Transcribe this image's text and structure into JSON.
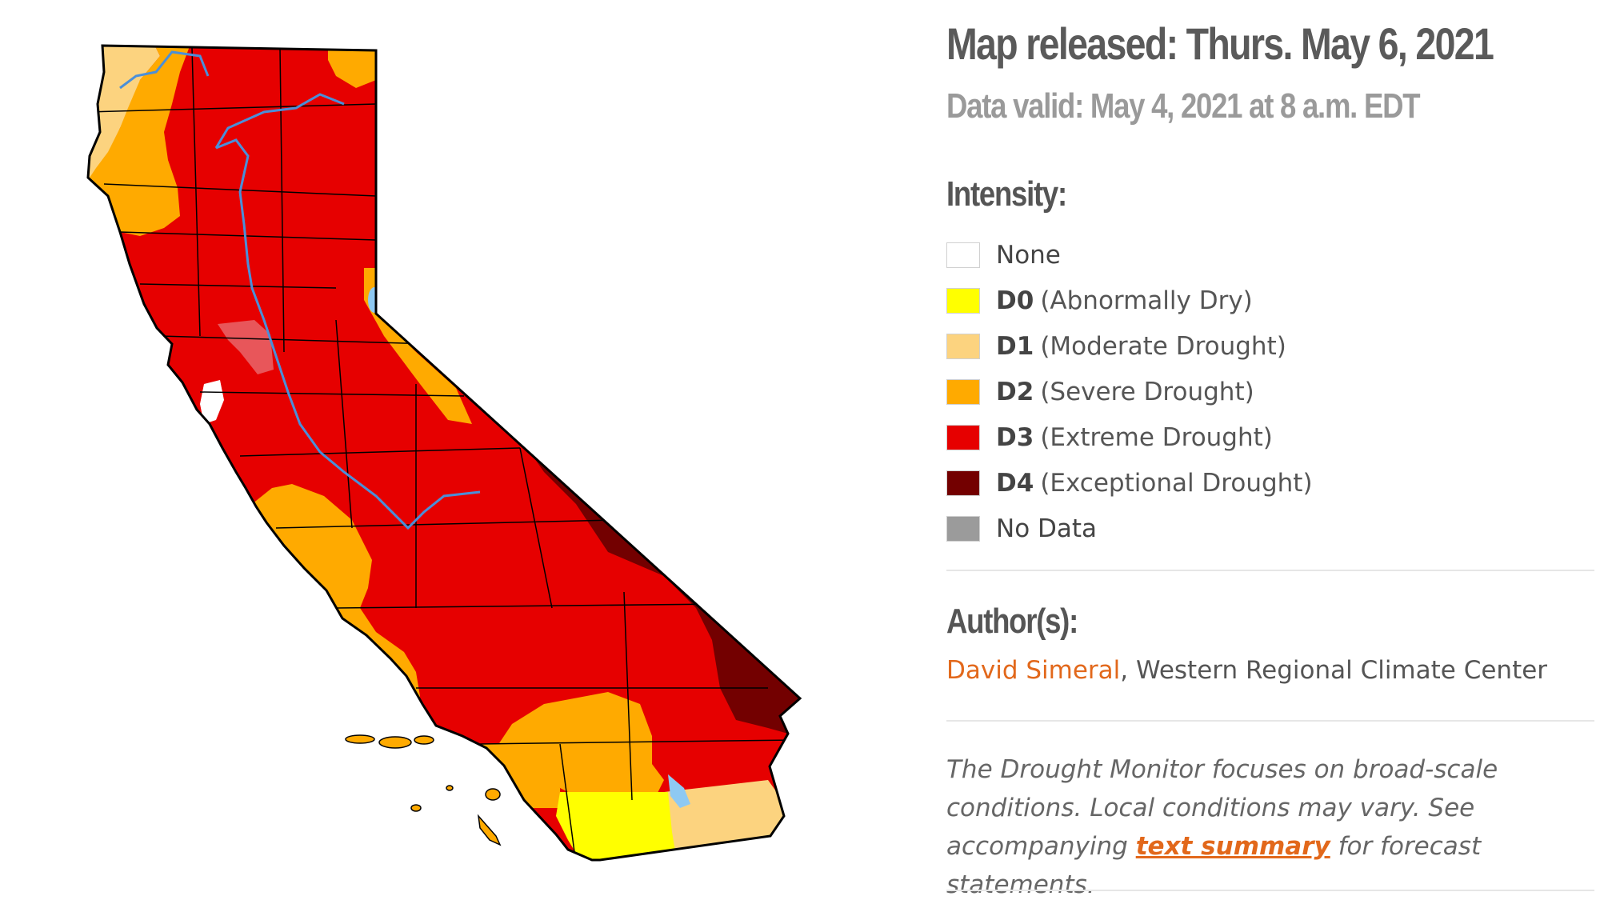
{
  "map": {
    "colors": {
      "none": "#ffffff",
      "d0": "#ffff00",
      "d1": "#fcd37f",
      "d2": "#ffaa00",
      "d3": "#e60000",
      "d4": "#730000",
      "no_data": "#9b9b9b",
      "water": "#8ec9f2",
      "rivers": "#4a8fd9",
      "borders": "#000000"
    }
  },
  "info": {
    "release_title": "Map released: Thurs. May 6, 2021",
    "data_valid": "Data valid: May 4, 2021 at 8 a.m. EDT",
    "intensity_heading": "Intensity:",
    "legend": [
      {
        "code": "None",
        "desc": "",
        "color": "#ffffff"
      },
      {
        "code": "D0",
        "desc": "(Abnormally Dry)",
        "color": "#ffff00"
      },
      {
        "code": "D1",
        "desc": "(Moderate Drought)",
        "color": "#fcd37f"
      },
      {
        "code": "D2",
        "desc": "(Severe Drought)",
        "color": "#ffaa00"
      },
      {
        "code": "D3",
        "desc": "(Extreme Drought)",
        "color": "#e60000"
      },
      {
        "code": "D4",
        "desc": "(Exceptional Drought)",
        "color": "#730000"
      },
      {
        "code": "No Data",
        "desc": "",
        "color": "#9b9b9b"
      }
    ],
    "authors_heading": "Author(s):",
    "author_name": "David Simeral",
    "author_affiliation": ", Western Regional Climate Center",
    "note_part1": "The Drought Monitor focuses on broad-scale conditions. Local conditions may vary. See accompanying ",
    "note_link": "text summary",
    "note_part2": " for forecast statements.",
    "accent_color": "#e2681b"
  }
}
